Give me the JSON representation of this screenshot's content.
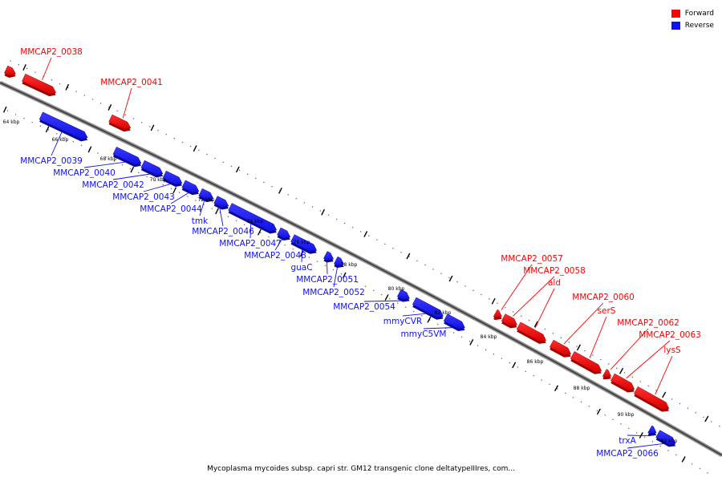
{
  "legend": [
    {
      "label": "Forward",
      "color": "#ff0000"
    },
    {
      "label": "Reverse",
      "color": "#1010ff"
    }
  ],
  "caption": "Mycoplasma mycoides subsp. capri str. GM12 transgenic clone deltatypeIIIres, com...",
  "scale": {
    "unit": "kbp",
    "ticks": [
      "64 kbp",
      "66 kbp",
      "68 kbp",
      "70 kbp",
      "72 kbp",
      "74 kbp",
      "76 kbp",
      "78 kbp",
      "80 kbp",
      "82 kbp",
      "84 kbp",
      "86 kbp",
      "88 kbp",
      "90 kbp",
      "92 kbp"
    ]
  },
  "genes": [
    {
      "label": "",
      "strand": "forward"
    },
    {
      "label": "MMCAP2_0038",
      "strand": "forward"
    },
    {
      "label": "MMCAP2_0041",
      "strand": "forward"
    },
    {
      "label": "MMCAP2_0039",
      "strand": "reverse"
    },
    {
      "label": "MMCAP2_0040",
      "strand": "reverse"
    },
    {
      "label": "MMCAP2_0042",
      "strand": "reverse"
    },
    {
      "label": "MMCAP2_0043",
      "strand": "reverse"
    },
    {
      "label": "MMCAP2_0044",
      "strand": "reverse"
    },
    {
      "label": "tmk",
      "strand": "reverse"
    },
    {
      "label": "MMCAP2_0046",
      "strand": "reverse"
    },
    {
      "label": "MMCAP2_0047",
      "strand": "reverse"
    },
    {
      "label": "MMCAP2_0048",
      "strand": "reverse"
    },
    {
      "label": "guaC",
      "strand": "reverse"
    },
    {
      "label": "MMCAP2_0051",
      "strand": "reverse"
    },
    {
      "label": "MMCAP2_0052",
      "strand": "reverse"
    },
    {
      "label": "MMCAP2_0054",
      "strand": "reverse"
    },
    {
      "label": "mmyCVR",
      "strand": "reverse"
    },
    {
      "label": "mmyC5VM",
      "strand": "reverse"
    },
    {
      "label": "MMCAP2_0057",
      "strand": "forward"
    },
    {
      "label": "MMCAP2_0058",
      "strand": "forward"
    },
    {
      "label": "ald",
      "strand": "forward"
    },
    {
      "label": "MMCAP2_0060",
      "strand": "forward"
    },
    {
      "label": "serS",
      "strand": "forward"
    },
    {
      "label": "MMCAP2_0062",
      "strand": "forward"
    },
    {
      "label": "MMCAP2_0063",
      "strand": "forward"
    },
    {
      "label": "lysS",
      "strand": "forward"
    },
    {
      "label": "trxA",
      "strand": "reverse"
    },
    {
      "label": "MMCAP2_0066",
      "strand": "reverse"
    }
  ]
}
